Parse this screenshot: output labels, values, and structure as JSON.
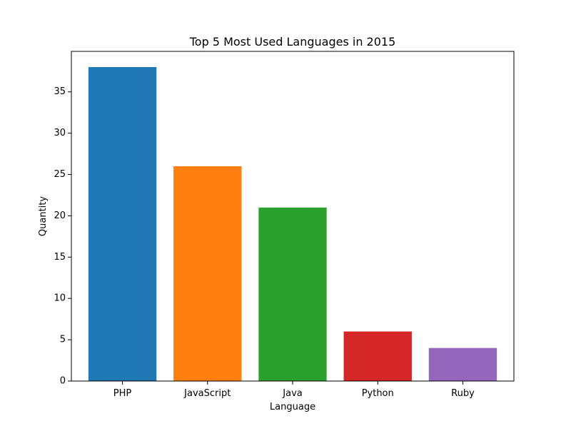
{
  "chart_data": {
    "type": "bar",
    "title": "Top 5 Most Used Languages in 2015",
    "xlabel": "Language",
    "ylabel": "Quantity",
    "categories": [
      "PHP",
      "JavaScript",
      "Java",
      "Python",
      "Ruby"
    ],
    "values": [
      38,
      26,
      21,
      6,
      4
    ],
    "colors": [
      "#1f77b4",
      "#ff7f0e",
      "#2ca02c",
      "#d62728",
      "#9467bd"
    ],
    "ylim": [
      0,
      39.9
    ],
    "yticks": [
      0,
      5,
      10,
      15,
      20,
      25,
      30,
      35
    ],
    "grid": false
  }
}
